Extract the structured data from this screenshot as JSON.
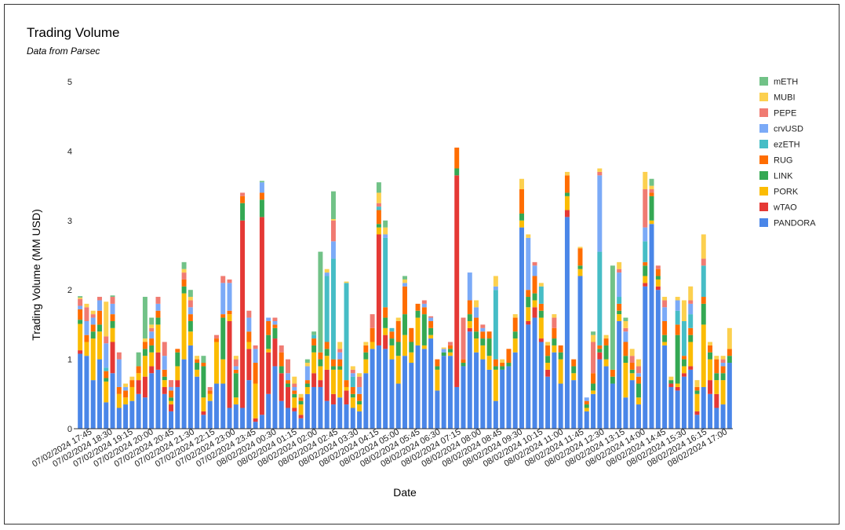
{
  "chart_data": {
    "type": "bar",
    "stacked": true,
    "title": "Trading Volume",
    "subtitle": "Data from Parsec",
    "xlabel": "Date",
    "ylabel": "Trading Volume (MM USD)",
    "ylim": [
      0,
      5
    ],
    "yticks": [
      0,
      1,
      2,
      3,
      4,
      5
    ],
    "grid": false,
    "legend_position": "right",
    "tick_labels": [
      "07/02/2024 17:45",
      "07/02/2024 18:30",
      "07/02/2024 19:15",
      "07/02/2024 20:00",
      "07/02/2024 20:45",
      "07/02/2024 21:30",
      "07/02/2024 22:15",
      "07/02/2024 23:00",
      "07/02/2024 23:45",
      "08/02/2024 00:30",
      "08/02/2024 01:15",
      "08/02/2024 02:00",
      "08/02/2024 02:45",
      "08/02/2024 03:30",
      "08/02/2024 04:15",
      "08/02/2024 05:00",
      "08/02/2024 05:45",
      "08/02/2024 06:30",
      "08/02/2024 07:15",
      "08/02/2024 08:00",
      "08/02/2024 08:45",
      "08/02/2024 09:30",
      "08/02/2024 10:15",
      "08/02/2024 11:00",
      "08/02/2024 11:45",
      "08/02/2024 12:30",
      "08/02/2024 13:15",
      "08/02/2024 14:00",
      "08/02/2024 14:45",
      "08/02/2024 15:30",
      "08/02/2024 16:15",
      "08/02/2024 17:00"
    ],
    "series_names": [
      "PANDORA",
      "wTAO",
      "PORK",
      "LINK",
      "RUG",
      "ezETH",
      "crvUSD",
      "PEPE",
      "MUBI",
      "mETH"
    ],
    "legend_order": [
      "mETH",
      "MUBI",
      "PEPE",
      "crvUSD",
      "ezETH",
      "RUG",
      "LINK",
      "PORK",
      "wTAO",
      "PANDORA"
    ],
    "colors": {
      "PANDORA": "#4a86e8",
      "wTAO": "#e53935",
      "PORK": "#fbbc04",
      "LINK": "#34a853",
      "RUG": "#ff6d01",
      "ezETH": "#46bdc6",
      "crvUSD": "#7baaf7",
      "PEPE": "#f07b72",
      "MUBI": "#fcd04f",
      "mETH": "#71c287"
    },
    "bars": [
      [
        1.08,
        0.05,
        0.38,
        0.06,
        0.15,
        0,
        0.05,
        0.1,
        0.02,
        0.02
      ],
      [
        1.05,
        0,
        0.2,
        0,
        0.1,
        0,
        0.2,
        0.2,
        0.05,
        0
      ],
      [
        0.7,
        0,
        0.6,
        0.1,
        0.1,
        0,
        0.1,
        0.05,
        0.05,
        0
      ],
      [
        1.0,
        0,
        0.4,
        0.1,
        0.2,
        0,
        0.15,
        0.05,
        0,
        0
      ],
      [
        0.38,
        0,
        0.3,
        0.05,
        0.1,
        0.05,
        0.35,
        0.1,
        0.5,
        0
      ],
      [
        0.8,
        0.45,
        0.2,
        0.1,
        0.1,
        0,
        0.15,
        0.1,
        0,
        0.02
      ],
      [
        0.3,
        0,
        0.2,
        0,
        0.1,
        0,
        0.4,
        0.1,
        0,
        0
      ],
      [
        0.35,
        0,
        0.1,
        0,
        0.1,
        0,
        0.05,
        0,
        0.05,
        0
      ],
      [
        0.4,
        0,
        0.2,
        0,
        0.1,
        0,
        0,
        0,
        0.05,
        0
      ],
      [
        0.5,
        0.2,
        0.1,
        0,
        0.1,
        0,
        0,
        0,
        0,
        0.2
      ],
      [
        0.45,
        0.3,
        0.3,
        0.1,
        0.1,
        0,
        0,
        0,
        0.05,
        0.6
      ],
      [
        0.8,
        0.1,
        0.2,
        0.1,
        0.1,
        0,
        0.1,
        0.05,
        0.05,
        0.1
      ],
      [
        0.85,
        0.25,
        0.4,
        0.1,
        0.1,
        0,
        0.1,
        0.1,
        0,
        0
      ],
      [
        0.5,
        0.1,
        0.1,
        0.05,
        0.1,
        0,
        0.2,
        0.2,
        0,
        0
      ],
      [
        0.25,
        0.1,
        0.05,
        0.05,
        0.1,
        0,
        0.05,
        0.1,
        0,
        0
      ],
      [
        0.6,
        0.1,
        0.2,
        0.2,
        0.05,
        0,
        0,
        0,
        0,
        0
      ],
      [
        1.0,
        0,
        0.95,
        0.1,
        0.1,
        0,
        0,
        0.1,
        0.05,
        0.1
      ],
      [
        1.2,
        0,
        0.2,
        0.15,
        0.1,
        0,
        0.1,
        0.1,
        0.05,
        0.1
      ],
      [
        0.75,
        0,
        0.1,
        0.1,
        0.05,
        0,
        0,
        0,
        0.05,
        0
      ],
      [
        0.2,
        0.05,
        0.2,
        0.45,
        0.05,
        0,
        0,
        0,
        0,
        0.1
      ],
      [
        0.4,
        0,
        0.1,
        0,
        0.05,
        0,
        0,
        0.05,
        0,
        0
      ],
      [
        0.65,
        0,
        0.6,
        0,
        0.05,
        0,
        0,
        0.05,
        0,
        0
      ],
      [
        0.65,
        0,
        0.35,
        0.6,
        0.05,
        0,
        0.45,
        0.1,
        0,
        0
      ],
      [
        0.3,
        1.25,
        0.1,
        0,
        0.05,
        0,
        0.4,
        0.05,
        0,
        0
      ],
      [
        0.35,
        0,
        0.1,
        0.35,
        0.05,
        0,
        0.05,
        0.1,
        0.05,
        0
      ],
      [
        0.3,
        2.7,
        0,
        0.25,
        0.1,
        0,
        0,
        0.05,
        0,
        0
      ],
      [
        0.7,
        0.45,
        0.1,
        0,
        0.15,
        0,
        0.2,
        0.1,
        0,
        0
      ],
      [
        0.1,
        0.05,
        0.5,
        0,
        0.3,
        0,
        0.2,
        0.05,
        0,
        0
      ],
      [
        0.2,
        2.85,
        0,
        0.25,
        0.1,
        0,
        0.15,
        0,
        0,
        0.02
      ],
      [
        0.5,
        0.6,
        0.05,
        0.2,
        0.2,
        0,
        0.05,
        0,
        0,
        0
      ],
      [
        0.9,
        0.4,
        0,
        0.15,
        0.05,
        0,
        0.05,
        0.05,
        0,
        0
      ],
      [
        0.4,
        0.4,
        0,
        0.1,
        0.2,
        0,
        0,
        0.1,
        0,
        0
      ],
      [
        0.3,
        0.3,
        0,
        0.05,
        0.05,
        0,
        0.1,
        0.2,
        0,
        0
      ],
      [
        0.25,
        0.05,
        0.15,
        0.05,
        0.05,
        0,
        0.05,
        0.05,
        0.1,
        0
      ],
      [
        0.15,
        0.05,
        0.15,
        0.05,
        0.05,
        0,
        0,
        0,
        0.05,
        0
      ],
      [
        0.5,
        0,
        0.1,
        0.05,
        0.05,
        0,
        0.2,
        0,
        0.05,
        0.05
      ],
      [
        0.6,
        0.2,
        0.3,
        0.1,
        0.1,
        0.05,
        0,
        0,
        0,
        0.05
      ],
      [
        0.6,
        0.1,
        0.2,
        0.1,
        0.1,
        0,
        0,
        0,
        0,
        1.45
      ],
      [
        0.4,
        0.45,
        0.2,
        0.1,
        0.1,
        0.95,
        0.05,
        0,
        0.05,
        0
      ],
      [
        0.35,
        0.15,
        0.35,
        0.05,
        0.1,
        1.45,
        0.25,
        0.3,
        0.02,
        0.4
      ],
      [
        0.45,
        0,
        0.4,
        0.05,
        0.1,
        0,
        0.1,
        0.05,
        0.1,
        0
      ],
      [
        0.35,
        0.2,
        0.05,
        0,
        0.1,
        1.4,
        0,
        0,
        0.02,
        0
      ],
      [
        0.3,
        0,
        0.15,
        0.05,
        0.1,
        0.15,
        0.05,
        0.05,
        0.05,
        0
      ],
      [
        0.25,
        0,
        0.1,
        0.05,
        0.1,
        0,
        0.1,
        0.15,
        0.05,
        0
      ],
      [
        0.8,
        0,
        0.2,
        0.1,
        0.1,
        0,
        0,
        0,
        0.05,
        0
      ],
      [
        1.15,
        0,
        0.1,
        0,
        0.2,
        0,
        0,
        0.2,
        0,
        0
      ],
      [
        1.2,
        1.6,
        0.1,
        0.05,
        0.2,
        0.05,
        0,
        0.05,
        0.15,
        0.15
      ],
      [
        1.15,
        0.2,
        0.1,
        0.15,
        0.15,
        1.0,
        0.05,
        0,
        0.1,
        0.1
      ],
      [
        1.0,
        0,
        0.2,
        0.1,
        0.1,
        0.05,
        0,
        0,
        0,
        0
      ],
      [
        0.65,
        0,
        0.4,
        0.2,
        0.3,
        0,
        0,
        0,
        0.05,
        0
      ],
      [
        1.05,
        0,
        0.3,
        0.3,
        0.4,
        0,
        0.05,
        0,
        0.05,
        0.05
      ],
      [
        0.95,
        0,
        0.15,
        0.15,
        0.2,
        0,
        0,
        0,
        0,
        0
      ],
      [
        1.2,
        0,
        0.4,
        0.1,
        0.1,
        0,
        0,
        0,
        0,
        0
      ],
      [
        1.15,
        0,
        0.05,
        0.45,
        0.1,
        0,
        0.05,
        0.05,
        0,
        0
      ],
      [
        1.3,
        0,
        0.05,
        0.1,
        0.1,
        0,
        0.05,
        0.02,
        0,
        0
      ],
      [
        0.55,
        0,
        0.3,
        0.05,
        0.1,
        0,
        0,
        0,
        0,
        0
      ],
      [
        1.05,
        0,
        0,
        0.05,
        0,
        0,
        0.05,
        0,
        0.02,
        0
      ],
      [
        1.05,
        0,
        0.05,
        0.05,
        0.05,
        0,
        0,
        0.05,
        0,
        0
      ],
      [
        0.6,
        3.05,
        0,
        0.1,
        0.3,
        0,
        0,
        0,
        0,
        0
      ],
      [
        0.9,
        0,
        0,
        0.05,
        0.05,
        0,
        0,
        0.6,
        0,
        0
      ],
      [
        1.4,
        0.05,
        0.1,
        0.1,
        0.2,
        0,
        0.4,
        0,
        0,
        0
      ],
      [
        1.1,
        0,
        0.2,
        0.1,
        0.2,
        0,
        0.15,
        0,
        0.1,
        0
      ],
      [
        1.0,
        0,
        0.2,
        0.1,
        0.1,
        0,
        0.05,
        0.05,
        0,
        0
      ],
      [
        0.85,
        0,
        0.2,
        0.25,
        0.1,
        0,
        0,
        0,
        0,
        0
      ],
      [
        0.4,
        0,
        0.45,
        0.05,
        0.1,
        1.0,
        0.05,
        0,
        0.15,
        0
      ],
      [
        0.85,
        0,
        0,
        0.05,
        0.05,
        0,
        0,
        0,
        0.05,
        0
      ],
      [
        0.9,
        0,
        0,
        0.05,
        0.2,
        0,
        0,
        0,
        0,
        0
      ],
      [
        1.1,
        0,
        0.2,
        0.1,
        0.2,
        0,
        0,
        0,
        0.05,
        0
      ],
      [
        2.9,
        0,
        0.1,
        0.1,
        0.35,
        0,
        0,
        0,
        0.15,
        0
      ],
      [
        1.5,
        0.05,
        0.2,
        0.15,
        0.1,
        0,
        0.75,
        0,
        0.05,
        0
      ],
      [
        1.6,
        0.15,
        0.1,
        0.1,
        0.25,
        0,
        0.15,
        0.05,
        0,
        0
      ],
      [
        1.25,
        0.05,
        0.3,
        0.1,
        0.1,
        0.25,
        0,
        0,
        0.05,
        0
      ],
      [
        0.75,
        0.1,
        0.1,
        0.1,
        0.15,
        0,
        0,
        0,
        0.05,
        0
      ],
      [
        1.1,
        0,
        0.1,
        0.1,
        0.15,
        0,
        0,
        0.15,
        0.05,
        0
      ],
      [
        0.65,
        0,
        0.35,
        0.1,
        0.1,
        0,
        0,
        0,
        0,
        0
      ],
      [
        3.05,
        0.1,
        0.2,
        0.05,
        0.25,
        0,
        0,
        0,
        0.05,
        0
      ],
      [
        0.7,
        0,
        0.1,
        0.1,
        0.1,
        0,
        0,
        0,
        0,
        0
      ],
      [
        2.2,
        0,
        0.1,
        0.05,
        0.25,
        0,
        0,
        0,
        0.02,
        0
      ],
      [
        0.25,
        0,
        0.05,
        0.05,
        0.05,
        0,
        0.05,
        0,
        0,
        0
      ],
      [
        0.5,
        0,
        0.05,
        0.1,
        0.15,
        0,
        0,
        0.45,
        0.1,
        0.05
      ],
      [
        1.0,
        0.1,
        0,
        0.05,
        0.05,
        1.35,
        1.1,
        0.05,
        0.05,
        0
      ],
      [
        0.9,
        0,
        0.1,
        0.2,
        0.1,
        0,
        0,
        0,
        0.05,
        0
      ],
      [
        0.65,
        0,
        0,
        0.1,
        0.1,
        0,
        0,
        0,
        0,
        1.5
      ],
      [
        1.55,
        0,
        0.1,
        0.05,
        0.1,
        0.1,
        0.35,
        0.05,
        0.1,
        0
      ],
      [
        0.45,
        0,
        0.5,
        0.1,
        0.2,
        0,
        0.15,
        0.05,
        0.1,
        0.05
      ],
      [
        0.7,
        0,
        0.1,
        0.05,
        0.1,
        0,
        0,
        0.1,
        0.1,
        0
      ],
      [
        0.35,
        0,
        0.1,
        0.2,
        0.1,
        0,
        0.05,
        0.1,
        0.1,
        0
      ],
      [
        2.05,
        0.05,
        0.1,
        0.15,
        0.05,
        0.3,
        0.2,
        0.55,
        0.25,
        0
      ],
      [
        2.95,
        0,
        0.05,
        0.35,
        0.05,
        0,
        0,
        0.05,
        0.05,
        0.1
      ],
      [
        2.0,
        0.05,
        0.1,
        0.05,
        0.1,
        0,
        0,
        0.05,
        0,
        0
      ],
      [
        1.2,
        0,
        0.05,
        0.1,
        0.2,
        0,
        0.2,
        0.1,
        0.05,
        0
      ],
      [
        0.6,
        0.05,
        0,
        0.05,
        0,
        0,
        0,
        0,
        0.05,
        0
      ],
      [
        0.55,
        0.05,
        0.05,
        0.7,
        0.15,
        0.2,
        0.15,
        0,
        0.05,
        0
      ],
      [
        0.75,
        0.05,
        0.1,
        0.1,
        0.05,
        0.5,
        0,
        0,
        0.3,
        0
      ],
      [
        0.85,
        0.05,
        0.35,
        0.1,
        0.1,
        0.2,
        0.15,
        0.05,
        0.2,
        0
      ],
      [
        0.2,
        0.05,
        0.25,
        0.05,
        0.05,
        0,
        0,
        0,
        0.1,
        0
      ],
      [
        0.6,
        0,
        0.9,
        0.3,
        0.1,
        0.45,
        0,
        0.1,
        0.35,
        0
      ],
      [
        0.5,
        0.2,
        0.3,
        0.1,
        0.1,
        0,
        0,
        0,
        0.05,
        0
      ],
      [
        0.3,
        0.2,
        0.2,
        0.1,
        0.2,
        0,
        0,
        0,
        0.05,
        0
      ],
      [
        0.35,
        0,
        0.35,
        0.1,
        0.1,
        0,
        0.05,
        0.05,
        0.05,
        0
      ],
      [
        0.95,
        0,
        0,
        0.1,
        0.1,
        0,
        0,
        0,
        0.3,
        0
      ]
    ]
  }
}
